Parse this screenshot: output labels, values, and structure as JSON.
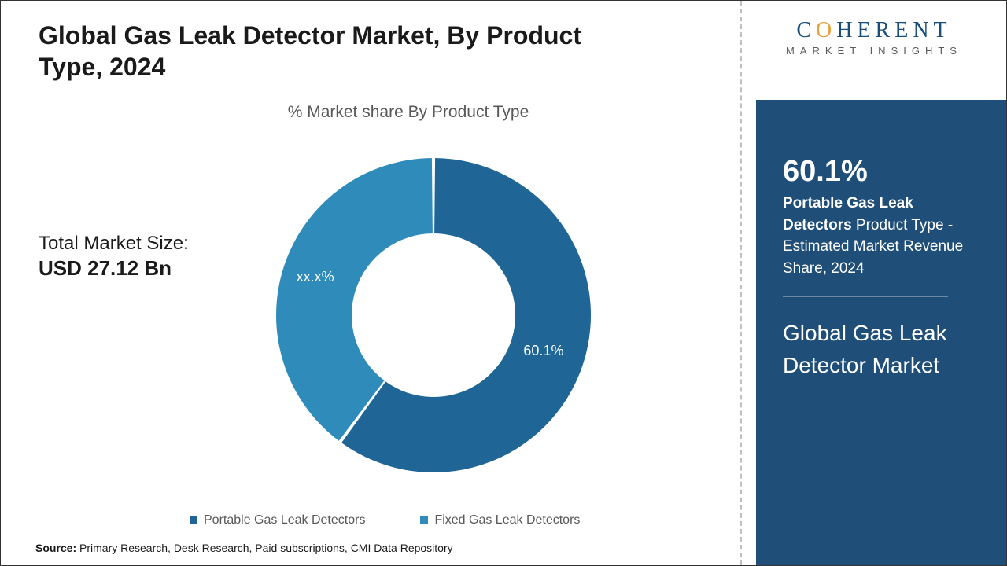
{
  "title": "Global Gas Leak Detector Market, By Product Type, 2024",
  "subtitle": "% Market share By Product Type",
  "market_size": {
    "label": "Total Market Size:",
    "value": "USD 27.12 Bn"
  },
  "chart": {
    "type": "donut",
    "inner_radius_ratio": 0.52,
    "background_color": "#ffffff",
    "slices": [
      {
        "name": "Portable Gas Leak Detectors",
        "value": 60.1,
        "label": "60.1%",
        "color": "#1f6696"
      },
      {
        "name": "Fixed Gas Leak Detectors",
        "value": 39.9,
        "label": "xx.x%",
        "color": "#2e8bba"
      }
    ],
    "slice_gap_deg": 1.2,
    "start_angle_deg": -90,
    "label_fontsize": 18,
    "label_color": "#ffffff"
  },
  "legend": {
    "items": [
      {
        "swatch": "#1f6696",
        "text": "Portable Gas Leak Detectors"
      },
      {
        "swatch": "#2e8bba",
        "text": "Fixed Gas Leak Detectors"
      }
    ],
    "text_color": "#595959",
    "fontsize": 16
  },
  "source": {
    "prefix": "Source:",
    "text": " Primary Research, Desk Research, Paid subscriptions, CMI Data Repository"
  },
  "logo": {
    "line1_pre": "C",
    "line1_accent": "O",
    "line1_post": "HERENT",
    "line2": "MARKET INSIGHTS",
    "text_color": "#1a4e7a",
    "accent_color": "#e8a23a"
  },
  "panel": {
    "background_color": "#1f4e79",
    "stat_pct": "60.1%",
    "stat_bold": "Portable Gas Leak Detectors",
    "stat_rest": " Product Type - Estimated Market Revenue Share, 2024",
    "title": "Global Gas Leak Detector Market"
  }
}
